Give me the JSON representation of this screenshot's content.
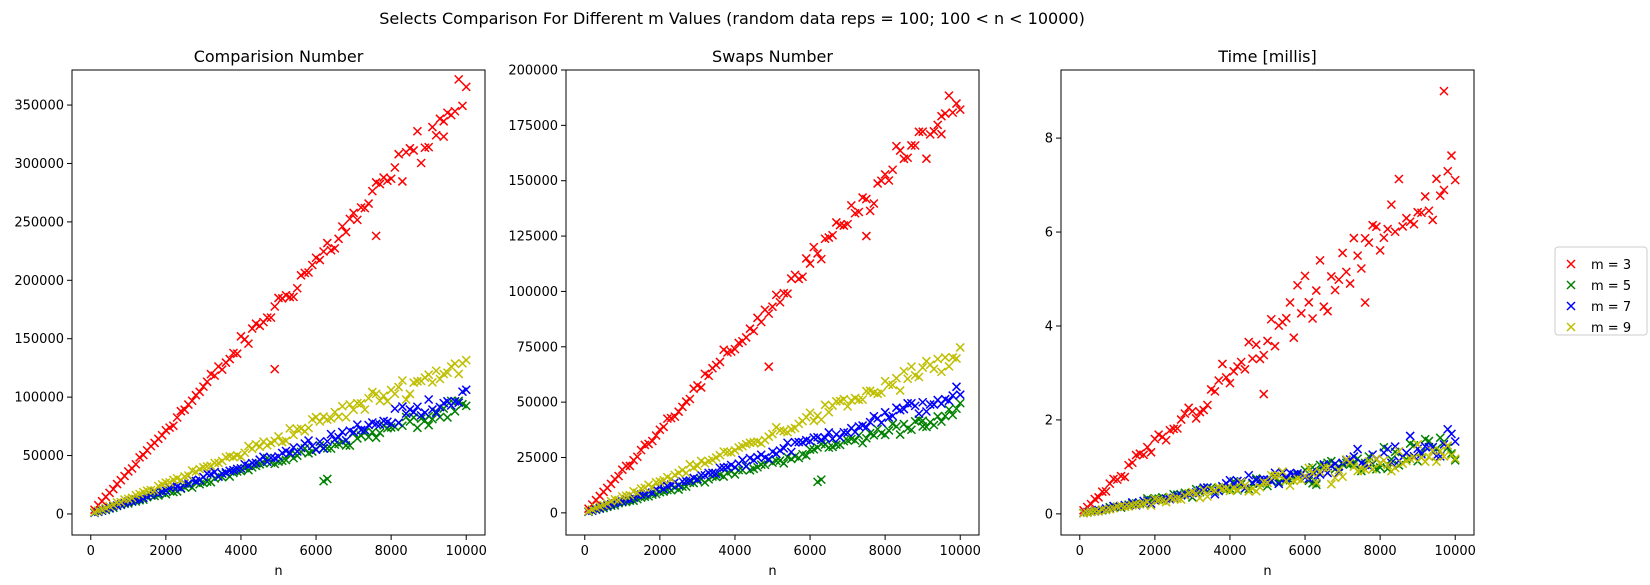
{
  "figure_title": "Selects Comparison For Different m Values (random data  reps = 100;  100 < n < 10000)",
  "legend": {
    "placement": "right, outside plots",
    "entries": [
      {
        "label": "m = 3",
        "color": "#ff0000"
      },
      {
        "label": "m = 5",
        "color": "#008000"
      },
      {
        "label": "m = 7",
        "color": "#0000ff"
      },
      {
        "label": "m = 9",
        "color": "#bfbf00"
      }
    ]
  },
  "chart_data": [
    {
      "type": "scatter",
      "title": "Comparision Number",
      "xlabel": "n",
      "ylabel": "",
      "xlim": [
        -500,
        10500
      ],
      "ylim": [
        -18000,
        380000
      ],
      "xticks": [
        0,
        2000,
        4000,
        6000,
        8000,
        10000
      ],
      "yticks": [
        0,
        50000,
        100000,
        150000,
        200000,
        250000,
        300000,
        350000
      ],
      "grid": false,
      "series": [
        {
          "name": "m = 3",
          "color": "#ff0000",
          "slope": 36.0,
          "noise": 0.025,
          "outliers": [
            [
              4900,
              124000
            ],
            [
              7600,
              238000
            ],
            [
              9400,
              323000
            ]
          ]
        },
        {
          "name": "m = 5",
          "color": "#008000",
          "slope": 9.2,
          "noise": 0.04,
          "outliers": [
            [
              6200,
              28000
            ],
            [
              6300,
              30000
            ],
            [
              9000,
              76000
            ]
          ]
        },
        {
          "name": "m = 7",
          "color": "#0000ff",
          "slope": 10.2,
          "noise": 0.04,
          "outliers": []
        },
        {
          "name": "m = 9",
          "color": "#bfbf00",
          "slope": 13.0,
          "noise": 0.04,
          "outliers": []
        }
      ]
    },
    {
      "type": "scatter",
      "title": "Swaps Number",
      "xlabel": "n",
      "ylabel": "",
      "xlim": [
        -500,
        10500
      ],
      "ylim": [
        -10000,
        200000
      ],
      "xticks": [
        0,
        2000,
        4000,
        6000,
        8000,
        10000
      ],
      "yticks": [
        0,
        25000,
        50000,
        75000,
        100000,
        125000,
        150000,
        175000,
        200000
      ],
      "grid": false,
      "series": [
        {
          "name": "m = 3",
          "color": "#ff0000",
          "slope": 18.8,
          "noise": 0.025,
          "outliers": [
            [
              4900,
              66000
            ],
            [
              7500,
              125000
            ],
            [
              9500,
              171000
            ]
          ]
        },
        {
          "name": "m = 5",
          "color": "#008000",
          "slope": 4.6,
          "noise": 0.04,
          "outliers": [
            [
              6200,
              14000
            ],
            [
              6300,
              15000
            ],
            [
              9000,
              39000
            ]
          ]
        },
        {
          "name": "m = 7",
          "color": "#0000ff",
          "slope": 5.4,
          "noise": 0.04,
          "outliers": []
        },
        {
          "name": "m = 9",
          "color": "#bfbf00",
          "slope": 7.1,
          "noise": 0.04,
          "outliers": []
        }
      ]
    },
    {
      "type": "scatter",
      "title": "Time [millis]",
      "xlabel": "n",
      "ylabel": "",
      "xlim": [
        -500,
        10500
      ],
      "ylim": [
        -0.45,
        9.45
      ],
      "xticks": [
        0,
        2000,
        4000,
        6000,
        8000,
        10000
      ],
      "yticks": [
        0,
        2,
        4,
        6,
        8
      ],
      "grid": false,
      "series": [
        {
          "name": "m = 3",
          "color": "#ff0000",
          "slope": 0.00073,
          "noise": 0.07,
          "outliers": [
            [
              9700,
              9.0
            ],
            [
              4900,
              2.55
            ],
            [
              7600,
              4.5
            ]
          ]
        },
        {
          "name": "m = 5",
          "color": "#008000",
          "slope": 0.000145,
          "noise": 0.12,
          "outliers": [
            [
              6200,
              0.65
            ],
            [
              6300,
              0.62
            ]
          ]
        },
        {
          "name": "m = 7",
          "color": "#0000ff",
          "slope": 0.00015,
          "noise": 0.12,
          "outliers": []
        },
        {
          "name": "m = 9",
          "color": "#bfbf00",
          "slope": 0.000132,
          "noise": 0.12,
          "outliers": []
        }
      ]
    }
  ]
}
